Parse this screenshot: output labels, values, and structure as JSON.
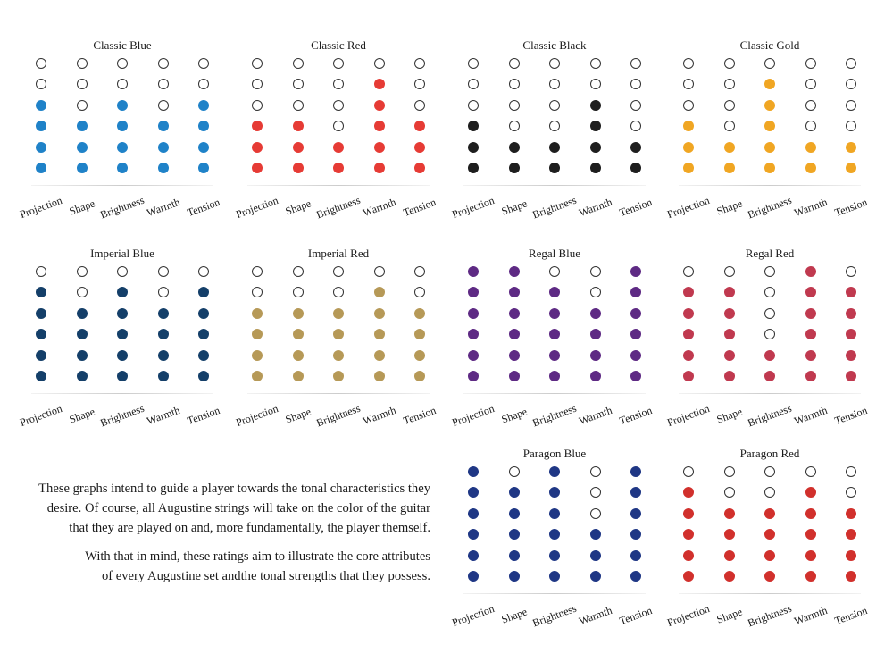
{
  "chart_data": [
    {
      "type": "dot-rating",
      "title": "Classic Blue",
      "color": "#1f82c8",
      "categories": [
        "Projection",
        "Shape",
        "Brightness",
        "Warmth",
        "Tension"
      ],
      "values": [
        4,
        3,
        4,
        3,
        4
      ],
      "max": 6
    },
    {
      "type": "dot-rating",
      "title": "Classic Red",
      "color": "#e63b35",
      "categories": [
        "Projection",
        "Shape",
        "Brightness",
        "Warmth",
        "Tension"
      ],
      "values": [
        3,
        3,
        2,
        5,
        3
      ],
      "max": 6
    },
    {
      "type": "dot-rating",
      "title": "Classic Black",
      "color": "#1e1e1e",
      "categories": [
        "Projection",
        "Shape",
        "Brightness",
        "Warmth",
        "Tension"
      ],
      "values": [
        3,
        2,
        2,
        4,
        2
      ],
      "max": 6
    },
    {
      "type": "dot-rating",
      "title": "Classic Gold",
      "color": "#f0a623",
      "categories": [
        "Projection",
        "Shape",
        "Brightness",
        "Warmth",
        "Tension"
      ],
      "values": [
        3,
        2,
        5,
        2,
        2
      ],
      "max": 6
    },
    {
      "type": "dot-rating",
      "title": "Imperial Blue",
      "color": "#143f69",
      "categories": [
        "Projection",
        "Shape",
        "Brightness",
        "Warmth",
        "Tension"
      ],
      "values": [
        5,
        4,
        5,
        4,
        5
      ],
      "max": 6
    },
    {
      "type": "dot-rating",
      "title": "Imperial Red",
      "color": "#b69957",
      "categories": [
        "Projection",
        "Shape",
        "Brightness",
        "Warmth",
        "Tension"
      ],
      "values": [
        4,
        4,
        4,
        5,
        4
      ],
      "max": 6
    },
    {
      "type": "dot-rating",
      "title": "Regal Blue",
      "color": "#5e2a84",
      "categories": [
        "Projection",
        "Shape",
        "Brightness",
        "Warmth",
        "Tension"
      ],
      "values": [
        6,
        6,
        5,
        4,
        6
      ],
      "max": 6
    },
    {
      "type": "dot-rating",
      "title": "Regal Red",
      "color": "#c0394f",
      "categories": [
        "Projection",
        "Shape",
        "Brightness",
        "Warmth",
        "Tension"
      ],
      "values": [
        5,
        5,
        2,
        6,
        5
      ],
      "max": 6
    },
    {
      "type": "dot-rating",
      "title": "Paragon Blue",
      "color": "#1f3785",
      "categories": [
        "Projection",
        "Shape",
        "Brightness",
        "Warmth",
        "Tension"
      ],
      "values": [
        6,
        5,
        6,
        3,
        6
      ],
      "max": 6
    },
    {
      "type": "dot-rating",
      "title": "Paragon Red",
      "color": "#d1302c",
      "categories": [
        "Projection",
        "Shape",
        "Brightness",
        "Warmth",
        "Tension"
      ],
      "values": [
        5,
        4,
        4,
        5,
        4
      ],
      "max": 6
    }
  ],
  "description": {
    "paragraph1": [
      "These graphs intend to guide a player towards the tonal characteristics they",
      "desire. Of course, all Augustine strings will take on the color of the guitar",
      "that they are played on and, more fundamentally, the player themself."
    ],
    "paragraph2": [
      "With that in mind, these ratings aim to illustrate the core attributes",
      "of every Augustine set andthe tonal strengths that they possess."
    ]
  }
}
